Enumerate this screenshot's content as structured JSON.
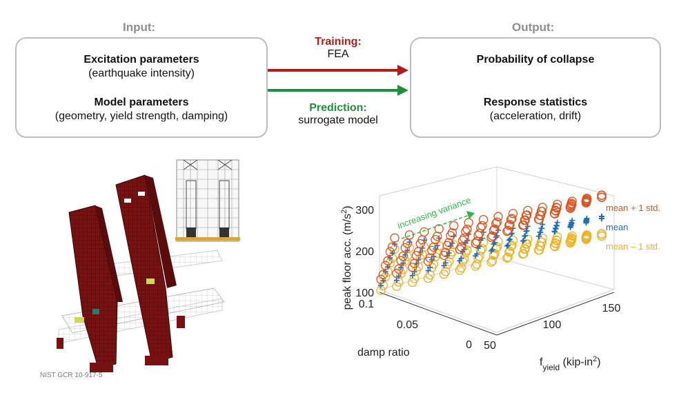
{
  "input": {
    "heading": "Input:",
    "excitation_title": "Excitation parameters",
    "excitation_sub": "(earthquake intensity)",
    "model_title": "Model parameters",
    "model_sub": "(geometry, yield strength, damping)"
  },
  "output": {
    "heading": "Output:",
    "collapse_title": "Probability of collapse",
    "response_title": "Response statistics",
    "response_sub": "(acceleration, drift)"
  },
  "training": {
    "label": "Training:",
    "sub": "FEA",
    "color": "#b01c1c"
  },
  "prediction": {
    "label": "Prediction:",
    "sub": "surrogate model",
    "color": "#1f8f3a"
  },
  "model_caption": "NIST GCR 10-917-5",
  "chart_data": {
    "type": "scatter",
    "zlabel": "peak floor acc. (m/s²)",
    "zlabel_main": "peak floor acc. (m/s",
    "zlabel_sup": "2",
    "zlabel_close": ")",
    "xlabel": "damp ratio",
    "ylabel_main": "f",
    "ylabel_sub": "yield",
    "ylabel_rest": " (kip-in",
    "ylabel_sup": "2",
    "ylabel_close": ")",
    "z_ticks": [
      "300",
      "200",
      "100"
    ],
    "damp_ticks": [
      "0.1",
      "0.05",
      "0"
    ],
    "fyield_ticks": [
      "50",
      "100",
      "150"
    ],
    "annotation": "increasing variance",
    "annotation_color": "#33b54a",
    "series": [
      {
        "name": "mean + 1 std.",
        "color": "#d9531e",
        "marker": "circle"
      },
      {
        "name": "mean",
        "color": "#1f6fb5",
        "marker": "plus"
      },
      {
        "name": "mean – 1 std.",
        "color": "#edb120",
        "marker": "circle"
      }
    ]
  }
}
